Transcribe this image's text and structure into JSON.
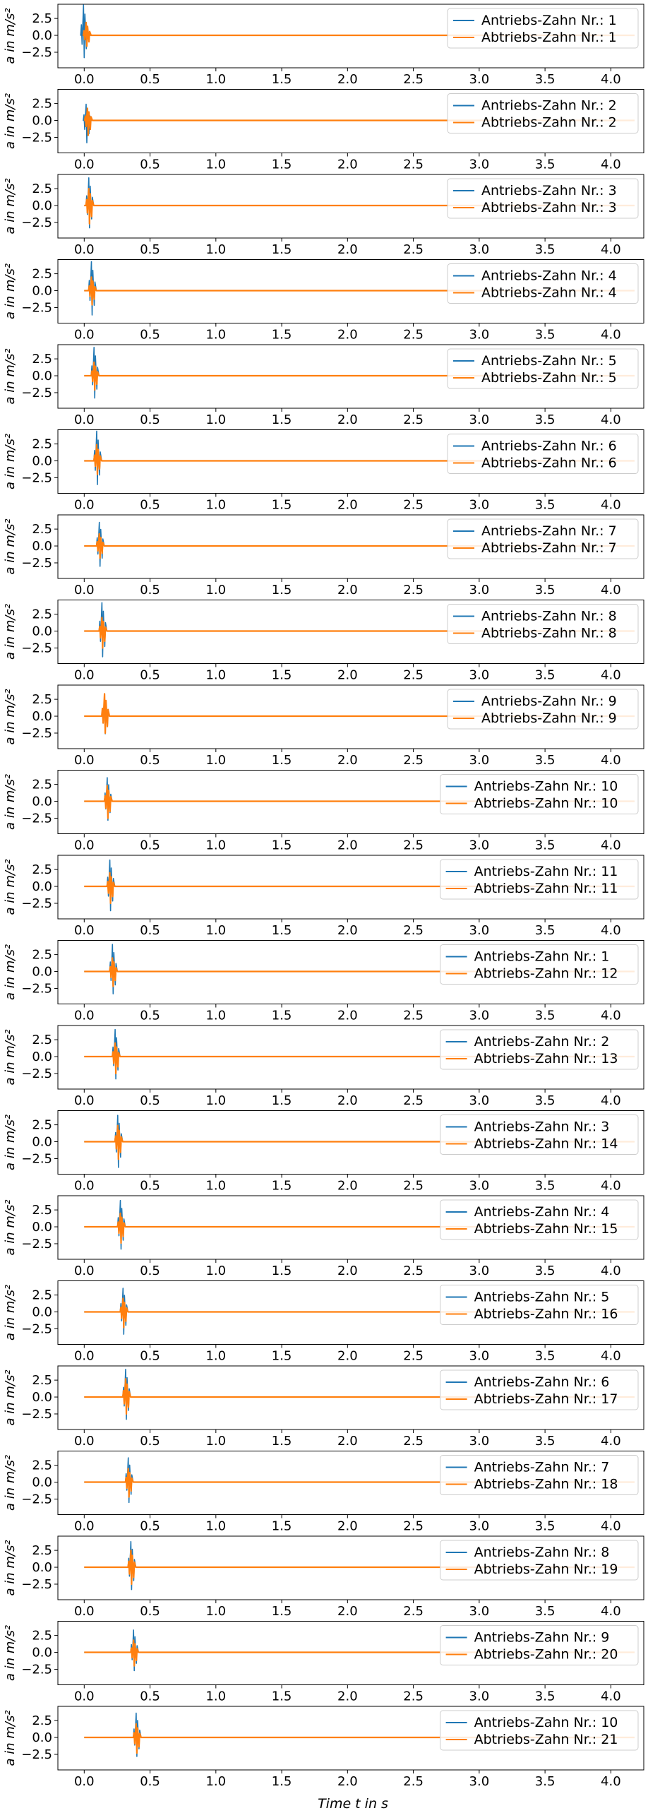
{
  "figure": {
    "xlabel": "Time t in s"
  },
  "colors": {
    "drive": "#1f77b4",
    "driven": "#ff7f0e"
  },
  "chart_data": {
    "type": "line",
    "ylabel": "a in m/s²",
    "xlim": [
      -0.2,
      4.25
    ],
    "ylim": [
      -4.8,
      4.6
    ],
    "xticks": [
      0.0,
      0.5,
      1.0,
      1.5,
      2.0,
      2.5,
      3.0,
      3.5,
      4.0
    ],
    "xtick_labels": [
      "0.0",
      "0.5",
      "1.0",
      "1.5",
      "2.0",
      "2.5",
      "3.0",
      "3.5",
      "4.0"
    ],
    "yticks": [
      2.5,
      0.0,
      -2.5
    ],
    "ytick_labels": [
      "2.5",
      "0.0",
      "−2.5"
    ],
    "grid": false,
    "legend_position": "top-right",
    "panels": [
      {
        "series": [
          {
            "name": "Antriebs-Zahn Nr.: 1",
            "impulse_time": 0.0,
            "peak": 4.5,
            "trough": -3.3
          },
          {
            "name": "Abtriebs-Zahn Nr.: 1",
            "impulse_time": 0.02,
            "peak": 1.9,
            "trough": -1.6
          }
        ]
      },
      {
        "series": [
          {
            "name": "Antriebs-Zahn Nr.: 2",
            "impulse_time": 0.02,
            "peak": 2.4,
            "trough": -3.3
          },
          {
            "name": "Abtriebs-Zahn Nr.: 2",
            "impulse_time": 0.03,
            "peak": 1.8,
            "trough": -2.2
          }
        ]
      },
      {
        "series": [
          {
            "name": "Antriebs-Zahn Nr.: 3",
            "impulse_time": 0.04,
            "peak": 4.1,
            "trough": -3.3
          },
          {
            "name": "Abtriebs-Zahn Nr.: 3",
            "impulse_time": 0.04,
            "peak": 2.5,
            "trough": -2.7
          }
        ]
      },
      {
        "series": [
          {
            "name": "Antriebs-Zahn Nr.: 4",
            "impulse_time": 0.06,
            "peak": 4.3,
            "trough": -3.6
          },
          {
            "name": "Abtriebs-Zahn Nr.: 4",
            "impulse_time": 0.06,
            "peak": 2.0,
            "trough": -2.1
          }
        ]
      },
      {
        "series": [
          {
            "name": "Antriebs-Zahn Nr.: 5",
            "impulse_time": 0.08,
            "peak": 4.2,
            "trough": -3.3
          },
          {
            "name": "Abtriebs-Zahn Nr.: 5",
            "impulse_time": 0.08,
            "peak": 2.0,
            "trough": -2.1
          }
        ]
      },
      {
        "series": [
          {
            "name": "Antriebs-Zahn Nr.: 6",
            "impulse_time": 0.1,
            "peak": 4.4,
            "trough": -3.5
          },
          {
            "name": "Abtriebs-Zahn Nr.: 6",
            "impulse_time": 0.1,
            "peak": 2.4,
            "trough": -2.0
          }
        ]
      },
      {
        "series": [
          {
            "name": "Antriebs-Zahn Nr.: 7",
            "impulse_time": 0.12,
            "peak": 3.5,
            "trough": -3.0
          },
          {
            "name": "Abtriebs-Zahn Nr.: 7",
            "impulse_time": 0.12,
            "peak": 1.8,
            "trough": -1.8
          }
        ]
      },
      {
        "series": [
          {
            "name": "Antriebs-Zahn Nr.: 8",
            "impulse_time": 0.14,
            "peak": 4.2,
            "trough": -3.8
          },
          {
            "name": "Abtriebs-Zahn Nr.: 8",
            "impulse_time": 0.14,
            "peak": 2.0,
            "trough": -2.5
          }
        ]
      },
      {
        "series": [
          {
            "name": "Antriebs-Zahn Nr.: 9",
            "impulse_time": 0.16,
            "peak": 2.2,
            "trough": -2.6
          },
          {
            "name": "Abtriebs-Zahn Nr.: 9",
            "impulse_time": 0.16,
            "peak": 3.3,
            "trough": -2.5
          }
        ]
      },
      {
        "series": [
          {
            "name": "Antriebs-Zahn Nr.: 10",
            "impulse_time": 0.18,
            "peak": 3.5,
            "trough": -2.8
          },
          {
            "name": "Abtriebs-Zahn Nr.: 10",
            "impulse_time": 0.18,
            "peak": 2.3,
            "trough": -2.5
          }
        ]
      },
      {
        "series": [
          {
            "name": "Antriebs-Zahn Nr.: 11",
            "impulse_time": 0.2,
            "peak": 3.9,
            "trough": -3.6
          },
          {
            "name": "Abtriebs-Zahn Nr.: 11",
            "impulse_time": 0.2,
            "peak": 2.0,
            "trough": -2.5
          }
        ]
      },
      {
        "series": [
          {
            "name": "Antriebs-Zahn Nr.: 1",
            "impulse_time": 0.22,
            "peak": 4.0,
            "trough": -3.3
          },
          {
            "name": "Abtriebs-Zahn Nr.: 12",
            "impulse_time": 0.22,
            "peak": 2.0,
            "trough": -2.2
          }
        ]
      },
      {
        "series": [
          {
            "name": "Antriebs-Zahn Nr.: 2",
            "impulse_time": 0.24,
            "peak": 4.0,
            "trough": -3.3
          },
          {
            "name": "Abtriebs-Zahn Nr.: 13",
            "impulse_time": 0.24,
            "peak": 2.0,
            "trough": -2.5
          }
        ]
      },
      {
        "series": [
          {
            "name": "Antriebs-Zahn Nr.: 3",
            "impulse_time": 0.26,
            "peak": 3.9,
            "trough": -3.8
          },
          {
            "name": "Abtriebs-Zahn Nr.: 14",
            "impulse_time": 0.26,
            "peak": 2.4,
            "trough": -2.6
          }
        ]
      },
      {
        "series": [
          {
            "name": "Antriebs-Zahn Nr.: 4",
            "impulse_time": 0.28,
            "peak": 3.9,
            "trough": -3.3
          },
          {
            "name": "Abtriebs-Zahn Nr.: 15",
            "impulse_time": 0.28,
            "peak": 2.0,
            "trough": -2.4
          }
        ]
      },
      {
        "series": [
          {
            "name": "Antriebs-Zahn Nr.: 5",
            "impulse_time": 0.3,
            "peak": 3.5,
            "trough": -3.3
          },
          {
            "name": "Abtriebs-Zahn Nr.: 16",
            "impulse_time": 0.3,
            "peak": 2.0,
            "trough": -2.3
          }
        ]
      },
      {
        "series": [
          {
            "name": "Antriebs-Zahn Nr.: 6",
            "impulse_time": 0.32,
            "peak": 4.1,
            "trough": -3.3
          },
          {
            "name": "Abtriebs-Zahn Nr.: 17",
            "impulse_time": 0.32,
            "peak": 2.7,
            "trough": -2.5
          }
        ]
      },
      {
        "series": [
          {
            "name": "Antriebs-Zahn Nr.: 7",
            "impulse_time": 0.34,
            "peak": 3.6,
            "trough": -3.0
          },
          {
            "name": "Abtriebs-Zahn Nr.: 18",
            "impulse_time": 0.34,
            "peak": 2.0,
            "trough": -2.2
          }
        ]
      },
      {
        "series": [
          {
            "name": "Antriebs-Zahn Nr.: 8",
            "impulse_time": 0.36,
            "peak": 3.8,
            "trough": -3.3
          },
          {
            "name": "Abtriebs-Zahn Nr.: 19",
            "impulse_time": 0.36,
            "peak": 2.5,
            "trough": -2.5
          }
        ]
      },
      {
        "series": [
          {
            "name": "Antriebs-Zahn Nr.: 9",
            "impulse_time": 0.38,
            "peak": 3.3,
            "trough": -2.7
          },
          {
            "name": "Abtriebs-Zahn Nr.: 20",
            "impulse_time": 0.38,
            "peak": 1.8,
            "trough": -2.0
          }
        ]
      },
      {
        "series": [
          {
            "name": "Antriebs-Zahn Nr.: 10",
            "impulse_time": 0.4,
            "peak": 3.6,
            "trough": -2.8
          },
          {
            "name": "Abtriebs-Zahn Nr.: 21",
            "impulse_time": 0.4,
            "peak": 2.0,
            "trough": -2.3
          }
        ]
      }
    ]
  }
}
